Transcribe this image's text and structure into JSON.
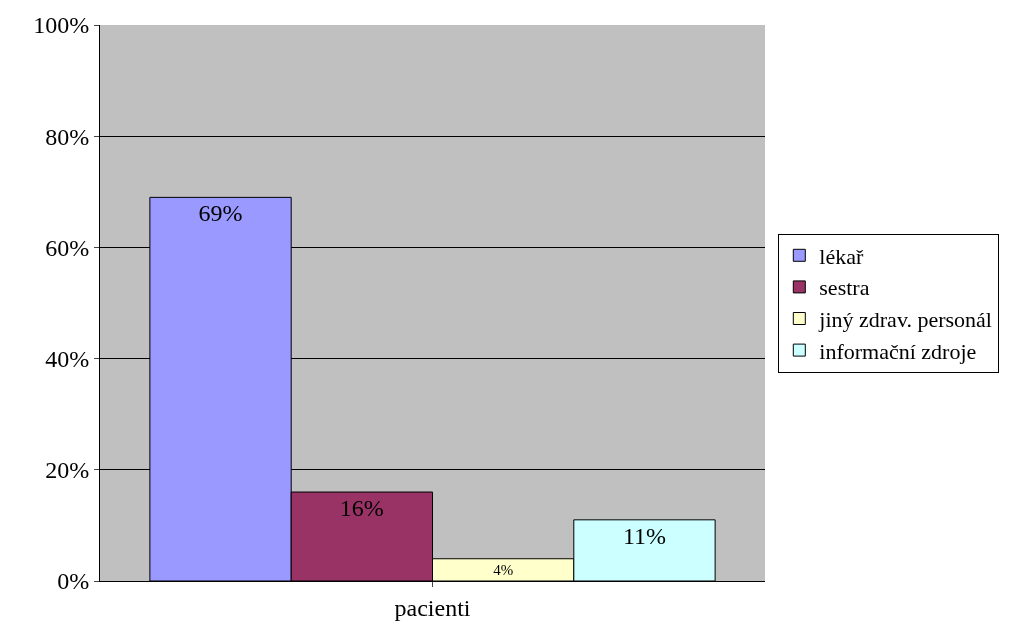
{
  "chart_data": {
    "type": "bar",
    "categories": [
      "pacienti"
    ],
    "ylim": [
      0,
      100
    ],
    "yticks": [
      {
        "value": 0,
        "label": "0%"
      },
      {
        "value": 20,
        "label": "20%"
      },
      {
        "value": 40,
        "label": "40%"
      },
      {
        "value": 60,
        "label": "60%"
      },
      {
        "value": 80,
        "label": "80%"
      },
      {
        "value": 100,
        "label": "100%"
      }
    ],
    "grid": "y",
    "legend": "right",
    "series": [
      {
        "name": "lékař",
        "color": "#9999ff",
        "values": [
          69
        ],
        "value_labels": [
          "69%"
        ]
      },
      {
        "name": "sestra",
        "color": "#993366",
        "values": [
          16
        ],
        "value_labels": [
          "16%"
        ]
      },
      {
        "name": "jiný zdrav. personál",
        "color": "#ffffcc",
        "values": [
          4
        ],
        "value_labels": [
          "4%"
        ]
      },
      {
        "name": "informační zdroje",
        "color": "#ccffff",
        "values": [
          11
        ],
        "value_labels": [
          "11%"
        ]
      }
    ]
  }
}
